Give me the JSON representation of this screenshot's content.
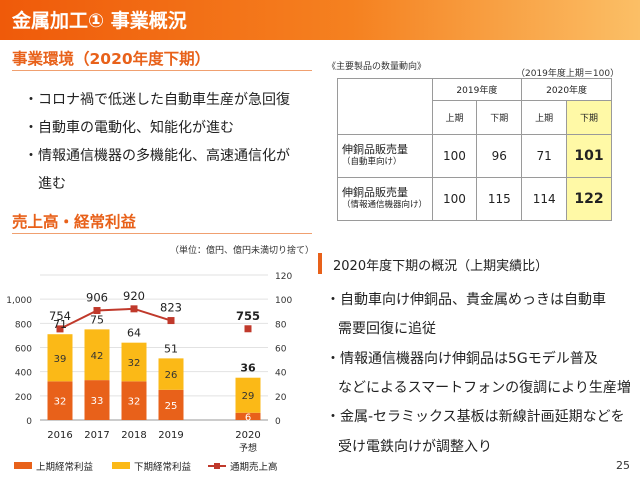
{
  "page_title": "金属加工① 事業概況",
  "environment": {
    "heading": "事業環境（2020年度下期）",
    "bullets": [
      "・コロナ禍で低迷した自動車生産が急回復",
      "・自動車の電動化、知能化が進む",
      "・情報通信機器の多機能化、高速通信化が",
      "進む"
    ]
  },
  "table": {
    "caption": "《主要製品の数量動向》",
    "note": "（2019年度上期＝100）",
    "year_headers": [
      "2019年度",
      "2020年度"
    ],
    "half_headers": [
      "上期",
      "下期",
      "上期",
      "下期"
    ],
    "rows": [
      {
        "label": "伸銅品販売量",
        "sub": "（自動車向け）",
        "values": [
          "100",
          "96",
          "71",
          "101"
        ]
      },
      {
        "label": "伸銅品販売量",
        "sub": "（情報通信機器向け）",
        "values": [
          "100",
          "115",
          "114",
          "122"
        ]
      }
    ],
    "highlight_color": "#fff9a6"
  },
  "profit_heading": "売上高・経常利益",
  "chart_unit_note": "（単位：億円、億円未満切り捨て）",
  "chart_data": {
    "type": "bar",
    "categories": [
      "2016",
      "2017",
      "2018",
      "2019",
      "2020"
    ],
    "category_subtext": [
      "",
      "",
      "",
      "",
      "予想"
    ],
    "series": [
      {
        "name": "上期経常利益",
        "axis": "right",
        "color": "#e8611a",
        "values": [
          32,
          33,
          32,
          25,
          6
        ]
      },
      {
        "name": "下期経常利益",
        "axis": "right",
        "color": "#fbb917",
        "values": [
          39,
          42,
          32,
          26,
          29
        ]
      },
      {
        "name": "通期売上高",
        "axis": "left",
        "type": "line",
        "color": "#c0392b",
        "values": [
          754,
          906,
          920,
          823,
          755
        ]
      }
    ],
    "totals": [
      71,
      75,
      64,
      51,
      36
    ],
    "left_axis": {
      "ticks": [
        "0",
        "200",
        "400",
        "600",
        "800",
        "1,000"
      ],
      "range": [
        0,
        1200
      ]
    },
    "right_axis": {
      "ticks": [
        "0",
        "20",
        "40",
        "60",
        "80",
        "100",
        "120"
      ],
      "range": [
        0,
        120
      ]
    },
    "gridlines": true,
    "legend_position": "bottom",
    "line_gap_before_last": true
  },
  "overview": {
    "title": "2020年度下期の概況（上期実績比）",
    "lines": [
      "・自動車向け伸銅品、貴金属めっきは自動車",
      "需要回復に追従",
      "・情報通信機器向け伸銅品は5Gモデル普及",
      "などによるスマートフォンの復調により生産増",
      "・金属-セラミックス基板は新線計画延期などを",
      "受け電鉄向けが調整入り"
    ]
  },
  "page_number": "25",
  "colors": {
    "accent": "#e8611a",
    "title_bar": "#f07020"
  }
}
